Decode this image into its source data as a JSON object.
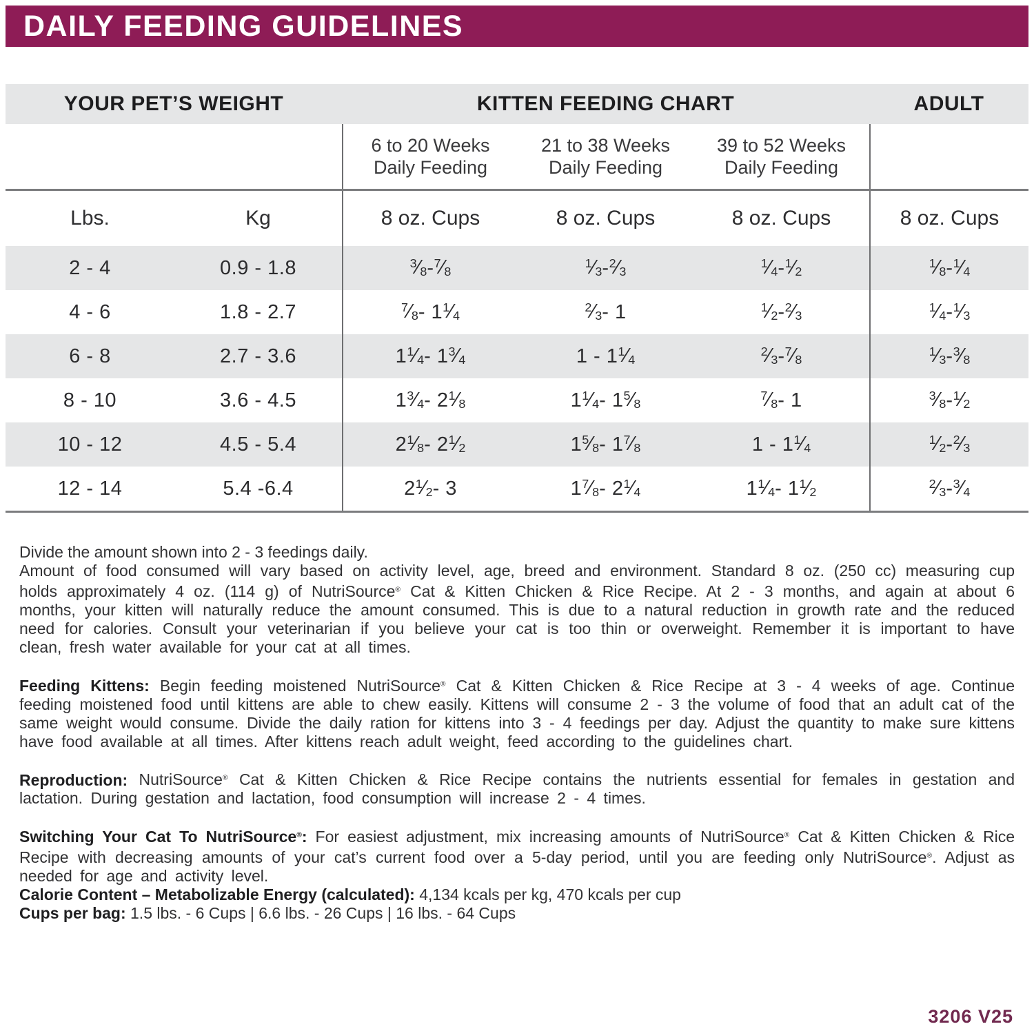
{
  "title": "DAILY FEEDING GUIDELINES",
  "colors": {
    "banner": "#8E1C56",
    "band": "#E5E6E7",
    "rule": "#7B7C7E",
    "vline": "#6E6F71",
    "footer_text": "#71294F"
  },
  "table": {
    "group_headers": [
      "YOUR PET’S WEIGHT",
      "KITTEN FEEDING CHART",
      "ADULT"
    ],
    "week_headers": [
      [
        "6 to 20 Weeks",
        "Daily Feeding"
      ],
      [
        "21 to 38 Weeks",
        "Daily Feeding"
      ],
      [
        "39 to 52 Weeks",
        "Daily Feeding"
      ]
    ],
    "unit_headers": [
      "Lbs.",
      "Kg",
      "8 oz. Cups",
      "8 oz. Cups",
      "8 oz. Cups",
      "8 oz. Cups"
    ],
    "rows": [
      [
        "2 - 4",
        "0.9 - 1.8",
        "3/8 - 7/8",
        "1/3 - 2/3",
        "1/4 - 1/2",
        "1/8 - 1/4"
      ],
      [
        "4 - 6",
        "1.8 - 2.7",
        "7/8 - 1 1/4",
        "2/3 - 1",
        "1/2 - 2/3",
        "1/4 - 1/3"
      ],
      [
        "6 - 8",
        "2.7 - 3.6",
        "1 1/4 - 1 3/4",
        "1 - 1 1/4",
        "2/3 - 7/8",
        "1/3 - 3/8"
      ],
      [
        "8 - 10",
        "3.6 - 4.5",
        "1 3/4 - 2 1/8",
        "1 1/4 - 1 5/8",
        "7/8 - 1",
        "3/8 - 1/2"
      ],
      [
        "10 - 12",
        "4.5 - 5.4",
        "2 1/8 - 2 1/2",
        "1 5/8 - 1 7/8",
        "1 - 1 1/4",
        "1/2 - 2/3"
      ],
      [
        "12 - 14",
        "5.4 -6.4",
        "2 1/2 - 3",
        "1 7/8 - 2 1/4",
        "1 1/4 - 1 1/2",
        "2/3 - 3/4"
      ]
    ]
  },
  "notes": {
    "line1": "Divide the amount shown into 2 - 3 feedings daily.",
    "paragraphs": [
      {
        "label": "",
        "text": "Amount of food consumed will vary based on activity level, age, breed and environment. Standard 8 oz. (250 cc) measuring cup holds approximately 4 oz. (114 g) of NutriSource® Cat & Kitten Chicken & Rice Recipe. At 2 - 3 months, and again at about 6 months, your kitten will naturally reduce the amount consumed. This is due to a natural reduction in growth rate and the reduced need for calories. Consult your veterinarian if you believe your cat is too thin or overweight. Remember it is important to have clean, fresh water available for your cat at all times."
      },
      {
        "label": "Feeding Kittens:",
        "text": "Begin feeding moistened NutriSource® Cat & Kitten Chicken & Rice Recipe at 3 - 4 weeks of age. Continue feeding moistened food until kittens are able to chew easily. Kittens will consume 2 - 3 the volume of food that an adult cat of the same weight would consume. Divide the daily ration for kittens into 3 - 4 feedings per day. Adjust the quantity to make sure kittens have food available at all times. After kittens reach adult weight, feed according to the guidelines chart."
      },
      {
        "label": "Reproduction:",
        "text": "NutriSource® Cat & Kitten Chicken & Rice Recipe contains the nutrients essential for females in gestation and lactation. During gestation and lactation, food consumption will increase 2 - 4 times."
      },
      {
        "label": "Switching Your Cat To NutriSource®:",
        "text": "For easiest adjustment, mix increasing amounts of NutriSource® Cat & Kitten Chicken & Rice Recipe with decreasing amounts of your cat’s current food over a 5-day period, until you are feeding only NutriSource®. Adjust as needed for age and activity level."
      }
    ],
    "calorie_label": "Calorie Content – Metabolizable Energy (calculated):",
    "calorie_text": "4,134 kcals per kg, 470 kcals per cup",
    "cups_label": "Cups per bag:",
    "cups_text": "1.5 lbs. - 6 Cups  |  6.6 lbs. -  26 Cups  |  16 lbs. -  64 Cups"
  },
  "footer_code": "3206 V25"
}
